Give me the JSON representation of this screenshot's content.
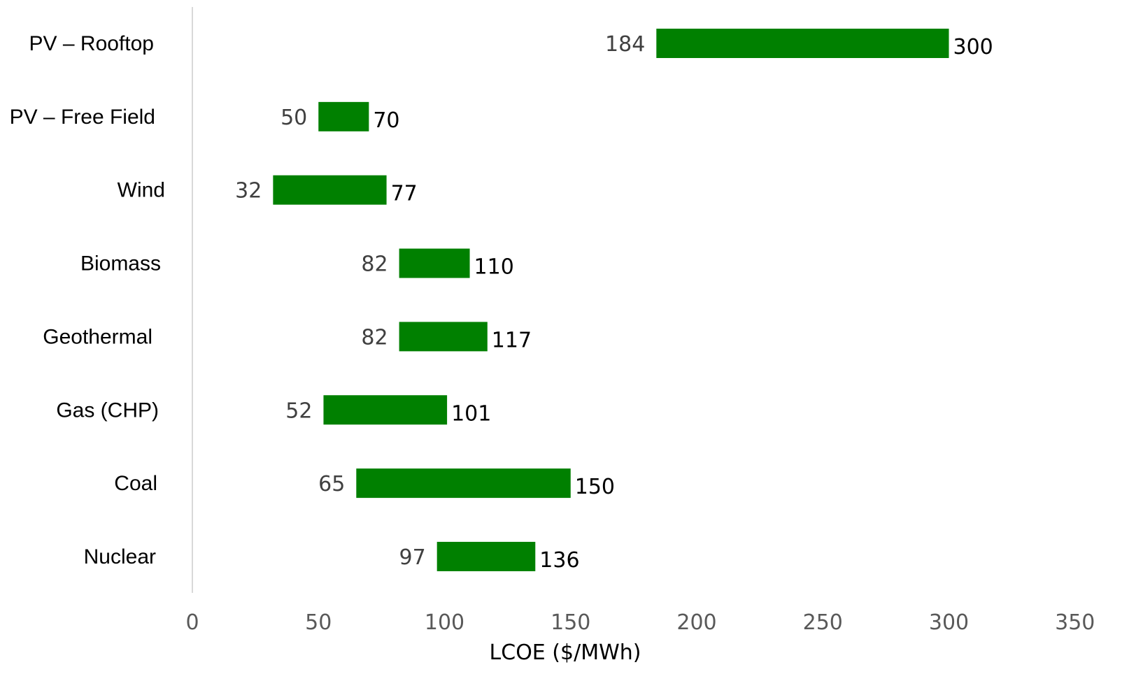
{
  "chart_data": {
    "type": "bar",
    "orientation": "horizontal",
    "style": "floating-range",
    "categories": [
      "PV – Rooftop",
      "PV – Free Field",
      "Wind",
      "Biomass",
      "Geothermal",
      "Gas (CHP)",
      "Coal",
      "Nuclear"
    ],
    "series": [
      {
        "low": [
          184,
          50,
          32,
          82,
          82,
          52,
          65,
          97
        ],
        "high": [
          300,
          70,
          77,
          110,
          117,
          101,
          150,
          136
        ]
      }
    ],
    "xlabel": "LCOE ($/MWh)",
    "ylabel": "",
    "xlim": [
      0,
      350
    ],
    "xticks": [
      0,
      50,
      100,
      150,
      200,
      250,
      300,
      350
    ],
    "xtick_labels": [
      "0",
      "50",
      "100",
      "150",
      "200",
      "250",
      "300",
      "350"
    ],
    "grid": false,
    "legend": "none",
    "bar_color": "#008000",
    "axis_color": "#d9d9d9"
  }
}
